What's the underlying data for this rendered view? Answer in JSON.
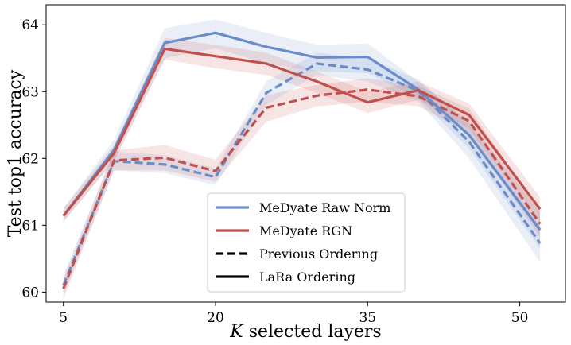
{
  "chart_data": {
    "type": "line",
    "title": "",
    "xlabel_prefix": "K",
    "xlabel_rest": " selected layers",
    "ylabel": "Test top1 accuracy",
    "xlim": [
      3.3,
      54.5
    ],
    "ylim": [
      59.85,
      64.3
    ],
    "xticks": [
      5,
      20,
      35,
      50
    ],
    "yticks": [
      60,
      61,
      62,
      63,
      64
    ],
    "grid": false,
    "legend_location": "lower center",
    "legend": [
      {
        "label": "MeDyate Raw Norm",
        "kind": "color",
        "color": "#6a8cc8"
      },
      {
        "label": "MeDyate RGN",
        "kind": "color",
        "color": "#c0504d"
      },
      {
        "label": "Previous Ordering",
        "kind": "dashed",
        "color": "#000000"
      },
      {
        "label": "LaRa Ordering",
        "kind": "solid",
        "color": "#000000"
      }
    ],
    "colors": {
      "raw_norm": "#6a8cc8",
      "rgn": "#c0504d"
    },
    "series": [
      {
        "name": "MeDyate Raw Norm - LaRa Ordering",
        "color_key": "raw_norm",
        "dash": false,
        "x": [
          5,
          10,
          15,
          20,
          25,
          30,
          35,
          40,
          45,
          52
        ],
        "y": [
          61.14,
          62.13,
          63.73,
          63.88,
          63.67,
          63.51,
          63.52,
          63.03,
          62.35,
          60.93
        ],
        "lo": [
          61.05,
          61.98,
          63.5,
          63.65,
          63.42,
          63.3,
          63.28,
          62.9,
          62.15,
          60.65
        ],
        "hi": [
          61.25,
          62.28,
          63.95,
          64.08,
          63.88,
          63.7,
          63.72,
          63.15,
          62.55,
          61.2
        ]
      },
      {
        "name": "MeDyate RGN - LaRa Ordering",
        "color_key": "rgn",
        "dash": false,
        "x": [
          5,
          10,
          15,
          20,
          25,
          30,
          35,
          40,
          45,
          52
        ],
        "y": [
          61.14,
          62.08,
          63.64,
          63.53,
          63.42,
          63.15,
          62.84,
          63.02,
          62.65,
          61.24
        ],
        "lo": [
          61.05,
          61.95,
          63.48,
          63.35,
          63.25,
          62.98,
          62.68,
          62.88,
          62.45,
          61.05
        ],
        "hi": [
          61.25,
          62.2,
          63.8,
          63.7,
          63.58,
          63.3,
          63.0,
          63.15,
          62.82,
          61.42
        ]
      },
      {
        "name": "MeDyate Raw Norm - Previous Ordering",
        "color_key": "raw_norm",
        "dash": true,
        "x": [
          5,
          10,
          15,
          20,
          25,
          30,
          35,
          40,
          45,
          52
        ],
        "y": [
          60.1,
          61.96,
          61.91,
          61.72,
          62.98,
          63.42,
          63.33,
          63.01,
          62.25,
          60.73
        ],
        "lo": [
          59.95,
          61.82,
          61.78,
          61.6,
          62.8,
          63.25,
          63.15,
          62.85,
          62.0,
          60.45
        ],
        "hi": [
          60.25,
          62.1,
          62.05,
          61.85,
          63.15,
          63.58,
          63.5,
          63.18,
          62.5,
          61.0
        ]
      },
      {
        "name": "MeDyate RGN - Previous Ordering",
        "color_key": "rgn",
        "dash": true,
        "x": [
          5,
          10,
          15,
          20,
          25,
          30,
          35,
          40,
          45,
          52
        ],
        "y": [
          60.05,
          61.97,
          62.01,
          61.81,
          62.76,
          62.94,
          63.03,
          62.93,
          62.56,
          61.02
        ],
        "lo": [
          59.9,
          61.82,
          61.82,
          61.65,
          62.55,
          62.78,
          62.85,
          62.78,
          62.38,
          60.82
        ],
        "hi": [
          60.2,
          62.12,
          62.2,
          61.98,
          62.95,
          63.1,
          63.2,
          63.08,
          62.75,
          61.22
        ]
      }
    ]
  }
}
